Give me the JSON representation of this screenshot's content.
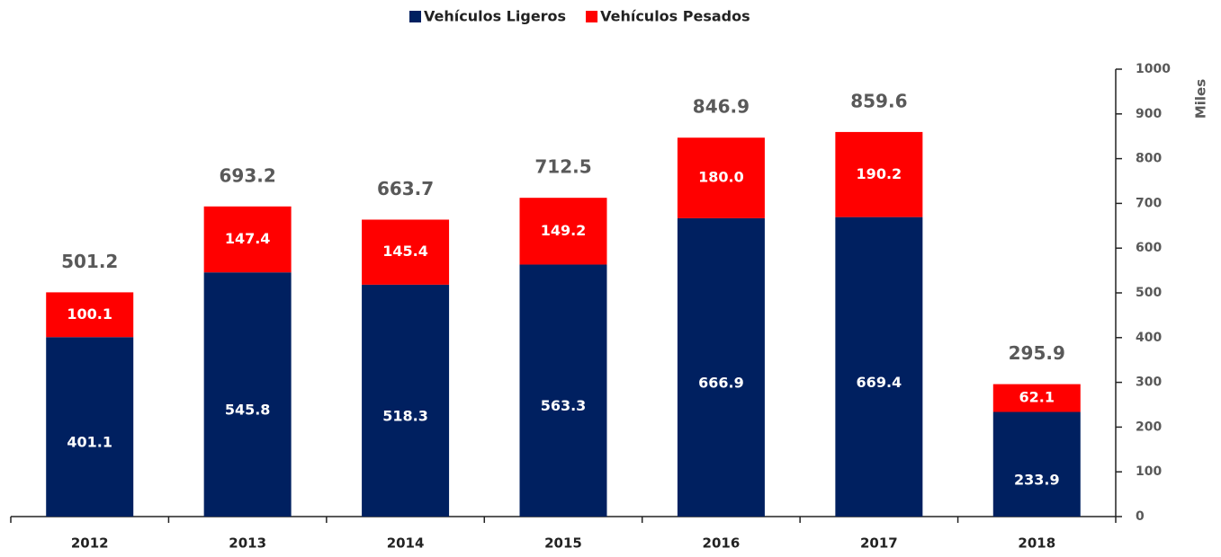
{
  "chart_data": {
    "type": "stacked_bar",
    "categories": [
      "2012",
      "2013",
      "2014",
      "2015",
      "2016",
      "2017",
      "2018"
    ],
    "series": [
      {
        "name": "Vehículos Ligeros",
        "color": "#002060",
        "values": [
          401.1,
          545.8,
          518.3,
          563.3,
          666.9,
          669.4,
          233.9
        ]
      },
      {
        "name": "Vehículos Pesados",
        "color": "#ff0000",
        "values": [
          100.1,
          147.4,
          145.4,
          149.2,
          180.0,
          190.2,
          62.1
        ],
        "value_labels": [
          "100.1",
          "147.4",
          "145.4",
          "149.2",
          "180.0",
          "190.2",
          "62.1"
        ]
      }
    ],
    "totals": [
      501.2,
      693.2,
      663.7,
      712.5,
      846.9,
      859.6,
      295.9
    ],
    "y_label": "Miles",
    "ylim": [
      0,
      1000
    ],
    "yticks": [
      0,
      100,
      200,
      300,
      400,
      500,
      600,
      700,
      800,
      900,
      1000
    ],
    "legend": "top"
  }
}
